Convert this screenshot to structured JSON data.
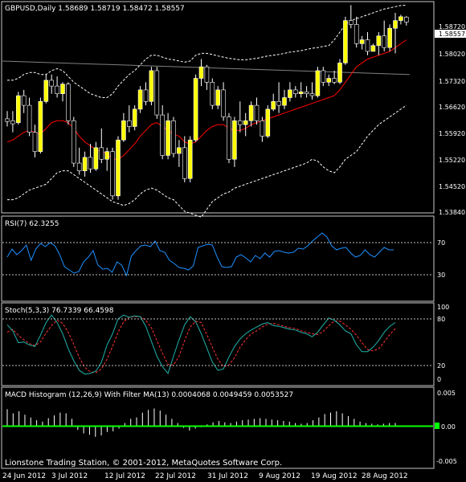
{
  "colors": {
    "background": "#000000",
    "panel_border": "#c8c8c8",
    "text": "#ffffff",
    "bull_candle": "#ffff00",
    "bear_candle": "#000000",
    "wick": "#ffffff",
    "bands": "#ffffff",
    "ma_red": "#ff0000",
    "ma_grey": "#808080",
    "rsi": "#1e90ff",
    "stoch_main": "#20b2aa",
    "stoch_signal": "#ff3333",
    "macd_hist": "#ffffff",
    "macd_signal": "#00ff00",
    "price_box_bg": "#ffffff",
    "price_box_text": "#000000",
    "level_line": "#c0c0c0"
  },
  "main": {
    "symbol_header": "GBPUSD,Daily  1.58689 1.58719 1.58472 1.58557",
    "price_labels": [
      "1.58720",
      "1.58557",
      "1.58020",
      "1.57320",
      "1.56620",
      "1.55920",
      "1.55220",
      "1.54520",
      "1.53840"
    ],
    "current_price": "1.58557"
  },
  "rsi": {
    "header": "RSI(7) 62.3255",
    "levels": [
      "70",
      "30"
    ],
    "values": [
      52,
      62,
      55,
      60,
      67,
      48,
      62,
      69,
      65,
      70,
      66,
      55,
      40,
      36,
      32,
      34,
      46,
      52,
      60,
      42,
      37,
      38,
      33,
      46,
      42,
      29,
      53,
      60,
      66,
      67,
      65,
      72,
      60,
      58,
      48,
      44,
      39,
      38,
      36,
      41,
      64,
      66,
      68,
      67,
      52,
      40,
      39,
      40,
      52,
      55,
      51,
      46,
      54,
      50,
      57,
      52,
      59,
      60,
      58,
      57,
      58,
      63,
      62,
      66,
      72,
      77,
      82,
      77,
      66,
      61,
      63,
      64,
      57,
      52,
      54,
      61,
      55,
      52,
      58,
      64,
      61,
      61
    ]
  },
  "stoch": {
    "header": "Stoch(5,3,3) 76.7339 66.4598",
    "levels": [
      "100",
      "80",
      "20",
      "0"
    ],
    "main_values": [
      76,
      68,
      52,
      53,
      49,
      47,
      62,
      79,
      89,
      79,
      64,
      44,
      28,
      15,
      10,
      11,
      14,
      26,
      49,
      64,
      84,
      89,
      86,
      88,
      87,
      74,
      54,
      34,
      20,
      11,
      34,
      56,
      76,
      87,
      80,
      64,
      45,
      26,
      15,
      17,
      33,
      47,
      57,
      64,
      69,
      73,
      77,
      79,
      75,
      74,
      72,
      70,
      69,
      66,
      64,
      60,
      66,
      76,
      85,
      82,
      76,
      68,
      64,
      49,
      40,
      40,
      46,
      55,
      66,
      74,
      79
    ]
  },
  "stoch_signal": {
    "values": [
      66,
      70,
      62,
      56,
      51,
      48,
      53,
      65,
      75,
      82,
      78,
      66,
      50,
      32,
      19,
      13,
      12,
      17,
      30,
      47,
      66,
      80,
      86,
      87,
      87,
      82,
      72,
      55,
      38,
      23,
      22,
      34,
      55,
      73,
      81,
      79,
      63,
      46,
      30,
      20,
      22,
      32,
      46,
      56,
      64,
      68,
      73,
      77,
      78,
      76,
      74,
      72,
      71,
      68,
      66,
      64,
      63,
      67,
      75,
      81,
      81,
      76,
      70,
      62,
      52,
      43,
      41,
      44,
      53,
      63,
      71
    ]
  },
  "macd": {
    "header": "MACD Histogram (12,26,9) With Filter MA(13) 0.0004068 0.0049459 0.0053527",
    "levels": [
      "0.005",
      "0.00",
      "-0.005"
    ],
    "zero_label": "0.00",
    "histogram": [
      0.0024,
      0.0018,
      0.0021,
      0.0016,
      0.0012,
      0.0008,
      0.0006,
      0.0011,
      0.0015,
      0.0019,
      0.0018,
      0.001,
      -0.0006,
      -0.0011,
      -0.0013,
      -0.0016,
      -0.0014,
      -0.0009,
      -0.0008,
      -0.0004,
      0.0004,
      0.001,
      0.0012,
      0.0019,
      0.0023,
      0.0025,
      0.0022,
      0.0016,
      0.001,
      0.0004,
      -0.0003,
      -0.0007,
      -0.0004,
      -0.0002,
      0.0002,
      0.0005,
      0.0007,
      0.0005,
      0.0004,
      0.0006,
      0.0008,
      0.0009,
      0.001,
      0.0011,
      0.001,
      0.0009,
      0.0008,
      0.0007,
      0.0006,
      0.0004,
      0.0003,
      0.0004,
      0.0008,
      0.0012,
      0.0017,
      0.0019,
      0.0021,
      0.0018,
      0.0014,
      0.001,
      0.0006,
      0.0004,
      0.0003,
      0.0002,
      0.0003,
      0.0004,
      0.0004
    ],
    "signal_value": 0.0049459
  },
  "copyright": "Lionstone Trading Station, © 2001-2012, MetaQuotes Software Corp.",
  "dates": [
    "24 Jun 2012",
    "3 Jul 2012",
    "12 Jul 2012",
    "22 Jul 2012",
    "31 Jul 2012",
    "9 Aug 2012",
    "19 Aug 2012",
    "28 Aug 2012"
  ],
  "chart_data": {
    "type": "candlestick",
    "title": "GBPUSD,Daily",
    "header_values": {
      "open": 1.58689,
      "high": 1.58719,
      "low": 1.58472,
      "close": 1.58557
    },
    "ylim": [
      1.5365,
      1.5905
    ],
    "candles": [
      [
        1.5605,
        1.5625,
        1.5585,
        1.5598
      ],
      [
        1.56,
        1.5625,
        1.557,
        1.5592
      ],
      [
        1.5595,
        1.5675,
        1.559,
        1.5665
      ],
      [
        1.5665,
        1.568,
        1.562,
        1.564
      ],
      [
        1.564,
        1.566,
        1.556,
        1.557
      ],
      [
        1.557,
        1.559,
        1.5505,
        1.552
      ],
      [
        1.552,
        1.566,
        1.5515,
        1.565
      ],
      [
        1.565,
        1.572,
        1.5645,
        1.5705
      ],
      [
        1.5705,
        1.572,
        1.567,
        1.569
      ],
      [
        1.569,
        1.5715,
        1.566,
        1.567
      ],
      [
        1.567,
        1.57,
        1.565,
        1.5695
      ],
      [
        1.5695,
        1.57,
        1.559,
        1.56
      ],
      [
        1.56,
        1.561,
        1.548,
        1.549
      ],
      [
        1.549,
        1.553,
        1.546,
        1.547
      ],
      [
        1.547,
        1.552,
        1.5455,
        1.5505
      ],
      [
        1.5505,
        1.554,
        1.5465,
        1.5475
      ],
      [
        1.5475,
        1.5545,
        1.547,
        1.553
      ],
      [
        1.553,
        1.558,
        1.549,
        1.55
      ],
      [
        1.55,
        1.553,
        1.547,
        1.552
      ],
      [
        1.552,
        1.553,
        1.5395,
        1.5405
      ],
      [
        1.5405,
        1.556,
        1.5395,
        1.555
      ],
      [
        1.555,
        1.562,
        1.5545,
        1.56
      ],
      [
        1.56,
        1.564,
        1.557,
        1.5585
      ],
      [
        1.5585,
        1.564,
        1.5575,
        1.563
      ],
      [
        1.563,
        1.569,
        1.562,
        1.568
      ],
      [
        1.568,
        1.57,
        1.564,
        1.565
      ],
      [
        1.565,
        1.574,
        1.564,
        1.573
      ],
      [
        1.573,
        1.574,
        1.5605,
        1.5615
      ],
      [
        1.5615,
        1.564,
        1.55,
        1.551
      ],
      [
        1.551,
        1.562,
        1.55,
        1.56
      ],
      [
        1.56,
        1.561,
        1.5505,
        1.5515
      ],
      [
        1.5515,
        1.555,
        1.548,
        1.553
      ],
      [
        1.553,
        1.556,
        1.544,
        1.545
      ],
      [
        1.545,
        1.556,
        1.544,
        1.555
      ],
      [
        1.555,
        1.572,
        1.5545,
        1.571
      ],
      [
        1.571,
        1.576,
        1.569,
        1.574
      ],
      [
        1.574,
        1.5745,
        1.568,
        1.57
      ],
      [
        1.57,
        1.571,
        1.563,
        1.564
      ],
      [
        1.564,
        1.569,
        1.563,
        1.568
      ],
      [
        1.568,
        1.57,
        1.56,
        1.561
      ],
      [
        1.561,
        1.562,
        1.549,
        1.55
      ],
      [
        1.55,
        1.561,
        1.548,
        1.56
      ],
      [
        1.56,
        1.565,
        1.557,
        1.559
      ],
      [
        1.559,
        1.562,
        1.556,
        1.56
      ],
      [
        1.56,
        1.565,
        1.5585,
        1.564
      ],
      [
        1.564,
        1.566,
        1.559,
        1.56
      ],
      [
        1.56,
        1.561,
        1.5545,
        1.556
      ],
      [
        1.556,
        1.564,
        1.5555,
        1.563
      ],
      [
        1.563,
        1.567,
        1.5625,
        1.565
      ],
      [
        1.565,
        1.57,
        1.562,
        1.564
      ],
      [
        1.564,
        1.568,
        1.563,
        1.566
      ],
      [
        1.566,
        1.57,
        1.565,
        1.568
      ],
      [
        1.568,
        1.569,
        1.566,
        1.567
      ],
      [
        1.567,
        1.57,
        1.566,
        1.5675
      ],
      [
        1.5675,
        1.569,
        1.566,
        1.567
      ],
      [
        1.567,
        1.57,
        1.5655,
        1.5665
      ],
      [
        1.5665,
        1.574,
        1.566,
        1.573
      ],
      [
        1.573,
        1.574,
        1.569,
        1.57
      ],
      [
        1.57,
        1.572,
        1.569,
        1.571
      ],
      [
        1.571,
        1.573,
        1.5695,
        1.57
      ],
      [
        1.57,
        1.576,
        1.5695,
        1.575
      ],
      [
        1.575,
        1.587,
        1.5745,
        1.586
      ],
      [
        1.586,
        1.59,
        1.584,
        1.585
      ],
      [
        1.585,
        1.587,
        1.579,
        1.58
      ],
      [
        1.58,
        1.582,
        1.5785,
        1.581
      ],
      [
        1.581,
        1.583,
        1.577,
        1.578
      ],
      [
        1.578,
        1.58,
        1.578,
        1.5795
      ],
      [
        1.5795,
        1.583,
        1.577,
        1.582
      ],
      [
        1.582,
        1.586,
        1.578,
        1.579
      ],
      [
        1.579,
        1.585,
        1.578,
        1.584
      ],
      [
        1.584,
        1.588,
        1.5775,
        1.586
      ],
      [
        1.586,
        1.5875,
        1.585,
        1.587
      ],
      [
        1.5869,
        1.5872,
        1.5847,
        1.5856
      ]
    ],
    "ma_red": [
      1.5545,
      1.555,
      1.556,
      1.557,
      1.5575,
      1.557,
      1.5565,
      1.558,
      1.5595,
      1.56,
      1.56,
      1.5595,
      1.558,
      1.556,
      1.5545,
      1.5535,
      1.5525,
      1.552,
      1.5515,
      1.55,
      1.55,
      1.551,
      1.5525,
      1.554,
      1.556,
      1.5575,
      1.559,
      1.5595,
      1.5585,
      1.5575,
      1.5565,
      1.556,
      1.5545,
      1.554,
      1.5545,
      1.556,
      1.5575,
      1.5585,
      1.559,
      1.559,
      1.558,
      1.5575,
      1.5575,
      1.558,
      1.559,
      1.5595,
      1.56,
      1.5605,
      1.561,
      1.5615,
      1.562,
      1.5625,
      1.563,
      1.5635,
      1.564,
      1.5645,
      1.565,
      1.5655,
      1.566,
      1.5665,
      1.568,
      1.57,
      1.572,
      1.574,
      1.575,
      1.576,
      1.5765,
      1.577,
      1.5775,
      1.578,
      1.579,
      1.58,
      1.581
    ],
    "ma_grey": {
      "start": 1.5755,
      "end": 1.572
    },
    "bands": {
      "upper": [
        1.5705,
        1.5705,
        1.571,
        1.572,
        1.5725,
        1.5725,
        1.572,
        1.572,
        1.573,
        1.5735,
        1.573,
        1.5715,
        1.57,
        1.569,
        1.568,
        1.567,
        1.5665,
        1.566,
        1.566,
        1.567,
        1.569,
        1.5705,
        1.572,
        1.573,
        1.5745,
        1.576,
        1.577,
        1.577,
        1.5765,
        1.576,
        1.5758,
        1.5755,
        1.5752,
        1.5755,
        1.577,
        1.5775,
        1.5775,
        1.5772,
        1.5768,
        1.5765,
        1.5762,
        1.576,
        1.5758,
        1.5758,
        1.576,
        1.5762,
        1.5765,
        1.5768,
        1.577,
        1.5772,
        1.5775,
        1.5778,
        1.578,
        1.5782,
        1.5785,
        1.5788,
        1.579,
        1.5793,
        1.5795,
        1.581,
        1.583,
        1.585,
        1.586,
        1.5865,
        1.587,
        1.5875,
        1.588,
        1.5885,
        1.589,
        1.5893,
        1.5896,
        1.5899,
        1.59
      ],
      "lower": [
        1.5395,
        1.5395,
        1.54,
        1.541,
        1.542,
        1.5425,
        1.543,
        1.5435,
        1.545,
        1.5465,
        1.547,
        1.547,
        1.546,
        1.545,
        1.544,
        1.543,
        1.542,
        1.541,
        1.54,
        1.539,
        1.5385,
        1.538,
        1.5385,
        1.5395,
        1.541,
        1.542,
        1.5425,
        1.542,
        1.541,
        1.54,
        1.5395,
        1.538,
        1.5365,
        1.536,
        1.5355,
        1.535,
        1.537,
        1.539,
        1.54,
        1.541,
        1.5415,
        1.5425,
        1.543,
        1.5435,
        1.544,
        1.5445,
        1.545,
        1.5455,
        1.546,
        1.5465,
        1.547,
        1.5475,
        1.548,
        1.5485,
        1.549,
        1.55,
        1.5495,
        1.548,
        1.547,
        1.5465,
        1.548,
        1.55,
        1.551,
        1.552,
        1.554,
        1.556,
        1.5575,
        1.559,
        1.56,
        1.561,
        1.562,
        1.563,
        1.564
      ]
    }
  }
}
